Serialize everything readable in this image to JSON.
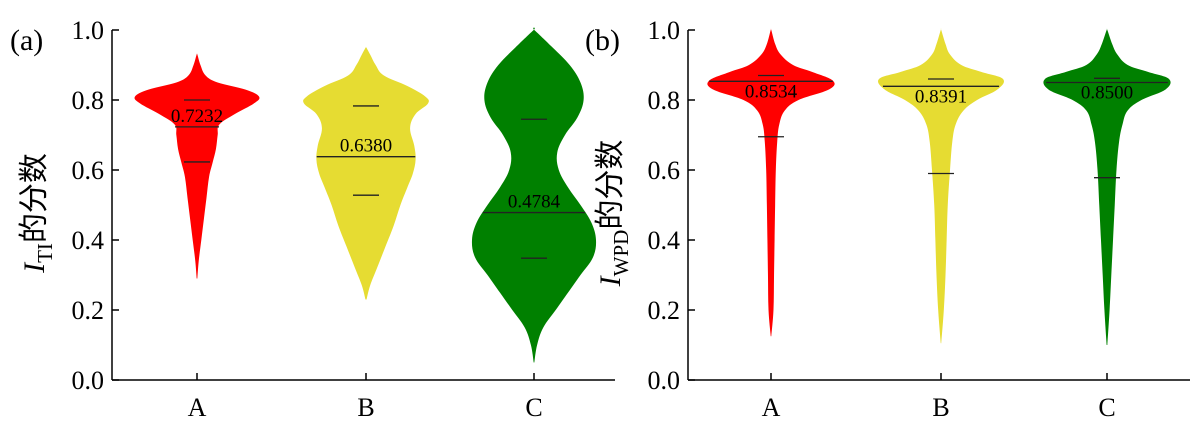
{
  "chart_data": [
    {
      "type": "violin",
      "panel_label": "(a)",
      "ylabel_var": "I",
      "ylabel_sub": "TI",
      "ylabel_rest": "的分数",
      "ylim": [
        0,
        1.0
      ],
      "yticks": [
        "0.0",
        "0.2",
        "0.4",
        "0.6",
        "0.8",
        "1.0"
      ],
      "categories": [
        "A",
        "B",
        "C"
      ],
      "series": [
        {
          "category": "A",
          "color": "#ff0000",
          "min": 0.29,
          "max": 0.93,
          "q1": 0.623,
          "median": 0.7232,
          "q3": 0.8,
          "median_label": "0.7232",
          "density": [
            [
              0.29,
              0.002
            ],
            [
              0.34,
              0.01
            ],
            [
              0.4,
              0.025
            ],
            [
              0.46,
              0.04
            ],
            [
              0.52,
              0.055
            ],
            [
              0.58,
              0.07
            ],
            [
              0.62,
              0.09
            ],
            [
              0.66,
              0.11
            ],
            [
              0.7,
              0.12
            ],
            [
              0.73,
              0.13
            ],
            [
              0.76,
              0.22
            ],
            [
              0.79,
              0.33
            ],
            [
              0.81,
              0.36
            ],
            [
              0.83,
              0.28
            ],
            [
              0.85,
              0.12
            ],
            [
              0.87,
              0.05
            ],
            [
              0.9,
              0.02
            ],
            [
              0.93,
              0.002
            ]
          ]
        },
        {
          "category": "B",
          "color": "#e6dc32",
          "min": 0.23,
          "max": 0.95,
          "q1": 0.528,
          "median": 0.638,
          "q3": 0.783,
          "median_label": "0.6380",
          "density": [
            [
              0.23,
              0.004
            ],
            [
              0.27,
              0.03
            ],
            [
              0.32,
              0.08
            ],
            [
              0.38,
              0.14
            ],
            [
              0.44,
              0.2
            ],
            [
              0.5,
              0.25
            ],
            [
              0.55,
              0.3
            ],
            [
              0.59,
              0.34
            ],
            [
              0.63,
              0.36
            ],
            [
              0.67,
              0.35
            ],
            [
              0.72,
              0.32
            ],
            [
              0.76,
              0.36
            ],
            [
              0.79,
              0.45
            ],
            [
              0.81,
              0.43
            ],
            [
              0.84,
              0.3
            ],
            [
              0.87,
              0.13
            ],
            [
              0.9,
              0.07
            ],
            [
              0.93,
              0.03
            ],
            [
              0.95,
              0.002
            ]
          ]
        },
        {
          "category": "C",
          "color": "#008000",
          "min": 0.05,
          "max": 1.0,
          "q1": 0.348,
          "median": 0.4784,
          "q3": 0.745,
          "median_label": "0.4784",
          "density": [
            [
              0.05,
              0.002
            ],
            [
              0.1,
              0.02
            ],
            [
              0.15,
              0.06
            ],
            [
              0.2,
              0.14
            ],
            [
              0.25,
              0.22
            ],
            [
              0.3,
              0.3
            ],
            [
              0.35,
              0.38
            ],
            [
              0.4,
              0.4
            ],
            [
              0.45,
              0.37
            ],
            [
              0.5,
              0.3
            ],
            [
              0.55,
              0.22
            ],
            [
              0.6,
              0.16
            ],
            [
              0.65,
              0.15
            ],
            [
              0.7,
              0.2
            ],
            [
              0.75,
              0.28
            ],
            [
              0.8,
              0.32
            ],
            [
              0.85,
              0.3
            ],
            [
              0.9,
              0.23
            ],
            [
              0.95,
              0.12
            ],
            [
              1.0,
              0.002
            ]
          ]
        }
      ]
    },
    {
      "type": "violin",
      "panel_label": "(b)",
      "ylabel_var": "I",
      "ylabel_sub": "WPD",
      "ylabel_rest": "的分数",
      "ylim": [
        0,
        1.0
      ],
      "yticks": [
        "0.0",
        "0.2",
        "0.4",
        "0.6",
        "0.8",
        "1.0"
      ],
      "categories": [
        "A",
        "B",
        "C"
      ],
      "series": [
        {
          "category": "A",
          "color": "#ff0000",
          "min": 0.125,
          "max": 1.0,
          "q1": 0.695,
          "median": 0.8534,
          "q3": 0.87,
          "median_label": "0.8534",
          "density": [
            [
              0.125,
              0.002
            ],
            [
              0.2,
              0.018
            ],
            [
              0.3,
              0.022
            ],
            [
              0.4,
              0.026
            ],
            [
              0.5,
              0.03
            ],
            [
              0.6,
              0.035
            ],
            [
              0.68,
              0.045
            ],
            [
              0.73,
              0.06
            ],
            [
              0.77,
              0.1
            ],
            [
              0.8,
              0.2
            ],
            [
              0.83,
              0.42
            ],
            [
              0.855,
              0.45
            ],
            [
              0.88,
              0.3
            ],
            [
              0.9,
              0.16
            ],
            [
              0.93,
              0.07
            ],
            [
              0.96,
              0.03
            ],
            [
              1.0,
              0.002
            ]
          ]
        },
        {
          "category": "B",
          "color": "#e6dc32",
          "min": 0.105,
          "max": 1.0,
          "q1": 0.59,
          "median": 0.8391,
          "q3": 0.86,
          "median_label": "0.8391",
          "density": [
            [
              0.105,
              0.002
            ],
            [
              0.2,
              0.025
            ],
            [
              0.3,
              0.04
            ],
            [
              0.4,
              0.05
            ],
            [
              0.5,
              0.06
            ],
            [
              0.6,
              0.08
            ],
            [
              0.68,
              0.1
            ],
            [
              0.73,
              0.13
            ],
            [
              0.77,
              0.2
            ],
            [
              0.8,
              0.32
            ],
            [
              0.83,
              0.5
            ],
            [
              0.86,
              0.55
            ],
            [
              0.88,
              0.36
            ],
            [
              0.9,
              0.18
            ],
            [
              0.93,
              0.08
            ],
            [
              0.96,
              0.04
            ],
            [
              1.0,
              0.002
            ]
          ]
        },
        {
          "category": "C",
          "color": "#008000",
          "min": 0.1,
          "max": 1.0,
          "q1": 0.578,
          "median": 0.85,
          "q3": 0.862,
          "median_label": "0.8500",
          "density": [
            [
              0.1,
              0.002
            ],
            [
              0.2,
              0.015
            ],
            [
              0.3,
              0.025
            ],
            [
              0.4,
              0.035
            ],
            [
              0.5,
              0.045
            ],
            [
              0.6,
              0.055
            ],
            [
              0.68,
              0.07
            ],
            [
              0.73,
              0.09
            ],
            [
              0.77,
              0.12
            ],
            [
              0.8,
              0.2
            ],
            [
              0.83,
              0.34
            ],
            [
              0.86,
              0.36
            ],
            [
              0.88,
              0.24
            ],
            [
              0.9,
              0.12
            ],
            [
              0.93,
              0.06
            ],
            [
              0.96,
              0.03
            ],
            [
              1.0,
              0.002
            ]
          ]
        }
      ]
    }
  ]
}
